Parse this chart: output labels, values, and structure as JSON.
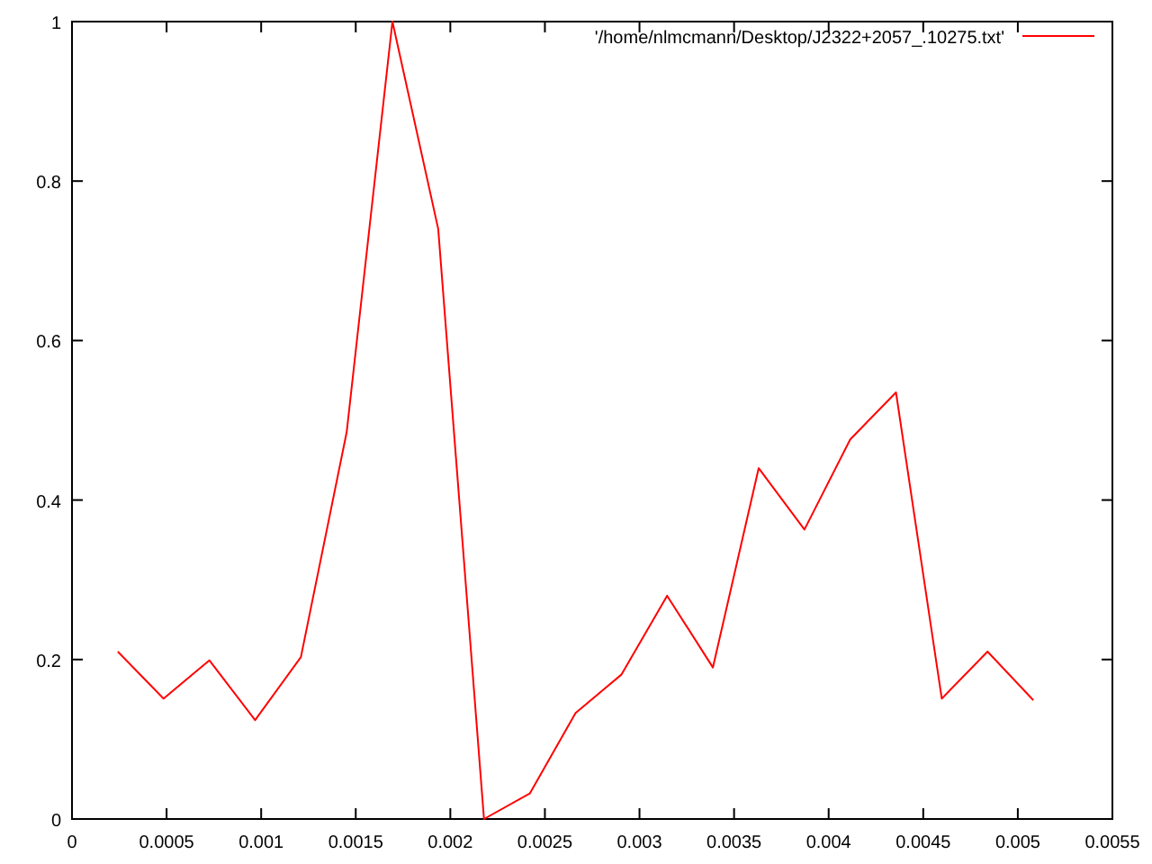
{
  "chart_data": {
    "type": "line",
    "x": [
      0.000242,
      0.000484,
      0.000726,
      0.000968,
      0.00121,
      0.001452,
      0.001694,
      0.001936,
      0.002178,
      0.00242,
      0.002662,
      0.002904,
      0.003146,
      0.003388,
      0.00363,
      0.003872,
      0.004114,
      0.004356,
      0.004598,
      0.00484,
      0.005082
    ],
    "series": [
      {
        "name": "'/home/nlmcmann/Desktop/J2322+2057_.10275.txt'",
        "color": "#ff0000",
        "values": [
          0.21,
          0.151,
          0.199,
          0.124,
          0.203,
          0.485,
          1.0,
          0.74,
          0,
          0.032,
          0.133,
          0.181,
          0.28,
          0.19,
          0.44,
          0.363,
          0.476,
          0.535,
          0.151,
          0.21,
          0.149
        ]
      }
    ],
    "xlim": [
      0,
      0.0055
    ],
    "xticks": [
      0,
      0.0005,
      0.001,
      0.0015,
      0.002,
      0.0025,
      0.003,
      0.0035,
      0.004,
      0.0045,
      0.005,
      0.0055
    ],
    "ylim": [
      0,
      1
    ],
    "yticks": [
      0,
      0.2,
      0.4,
      0.6,
      0.8,
      1
    ],
    "legend": "top right",
    "grid": false,
    "marker": "none",
    "line_style": "solid"
  }
}
